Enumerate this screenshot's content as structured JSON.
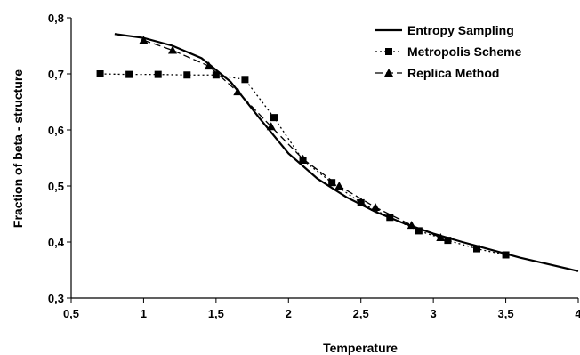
{
  "chart_data": {
    "type": "line",
    "title": "",
    "xlabel": "Temperature",
    "ylabel": "Fraction of beta - structure",
    "xlim": [
      0.5,
      4
    ],
    "ylim": [
      0.3,
      0.8
    ],
    "x_ticks": [
      "0,5",
      "1",
      "1,5",
      "2",
      "2,5",
      "3",
      "3,5",
      "4"
    ],
    "y_ticks": [
      "0,3",
      "0,4",
      "0,5",
      "0,6",
      "0,7",
      "0,8"
    ],
    "grid": false,
    "legend_position": "top-right",
    "series": [
      {
        "name": "Entropy Sampling",
        "style": "solid",
        "marker": "none",
        "x": [
          0.8,
          1.0,
          1.2,
          1.4,
          1.6,
          1.8,
          2.0,
          2.2,
          2.4,
          2.6,
          2.8,
          3.0,
          3.2,
          3.4,
          3.6,
          3.8,
          4.0
        ],
        "y": [
          0.771,
          0.764,
          0.75,
          0.728,
          0.686,
          0.621,
          0.558,
          0.513,
          0.48,
          0.454,
          0.433,
          0.415,
          0.4,
          0.386,
          0.372,
          0.36,
          0.348
        ]
      },
      {
        "name": "Metropolis Scheme",
        "style": "dotted",
        "marker": "square",
        "x": [
          0.7,
          0.9,
          1.1,
          1.3,
          1.5,
          1.7,
          1.9,
          2.1,
          2.3,
          2.5,
          2.7,
          2.9,
          3.1,
          3.3,
          3.5
        ],
        "y": [
          0.7,
          0.699,
          0.699,
          0.698,
          0.698,
          0.69,
          0.622,
          0.546,
          0.506,
          0.47,
          0.444,
          0.42,
          0.403,
          0.388,
          0.377
        ]
      },
      {
        "name": "Replica Method",
        "style": "dashed",
        "marker": "triangle",
        "x": [
          1.0,
          1.2,
          1.45,
          1.65,
          1.88,
          2.1,
          2.35,
          2.6,
          2.85,
          3.05
        ],
        "y": [
          0.76,
          0.742,
          0.714,
          0.668,
          0.606,
          0.548,
          0.5,
          0.462,
          0.43,
          0.408
        ]
      }
    ]
  }
}
